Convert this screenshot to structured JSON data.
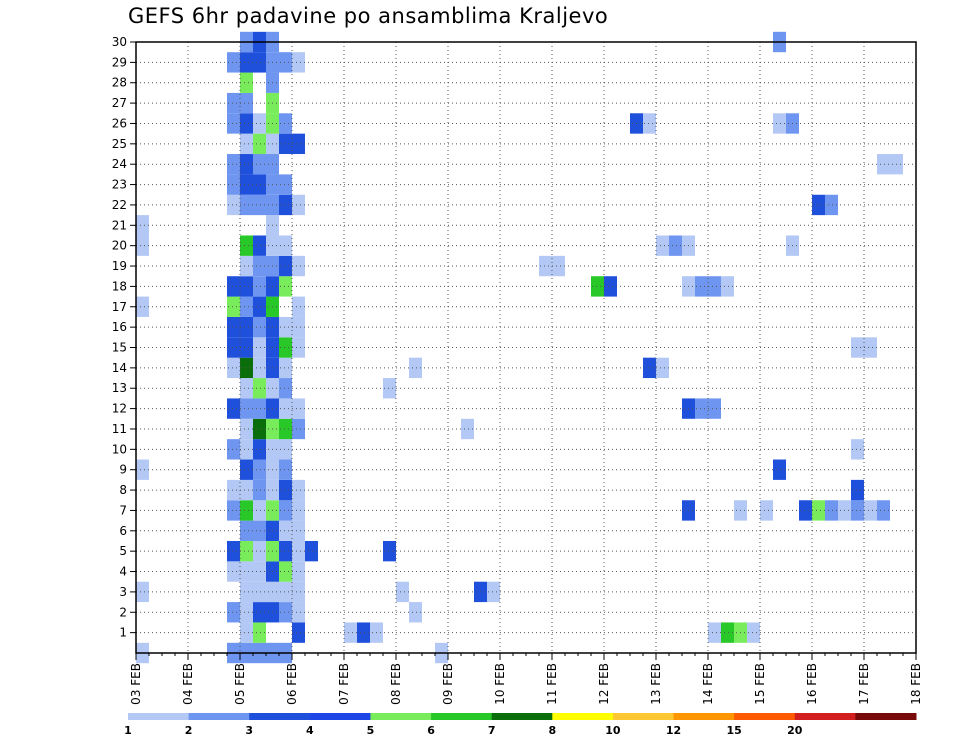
{
  "chart_data": {
    "type": "heatmap",
    "title": "GEFS 6hr padavine po ansamblima Kraljevo",
    "xlabel": "",
    "ylabel": "",
    "x_ticks": [
      "03 FEB",
      "04 FEB",
      "05 FEB",
      "06 FEB",
      "07 FEB",
      "08 FEB",
      "09 FEB",
      "10 FEB",
      "11 FEB",
      "12 FEB",
      "13 FEB",
      "14 FEB",
      "15 FEB",
      "16 FEB",
      "17 FEB",
      "18 FEB"
    ],
    "x_range": [
      "03 FEB 00Z",
      "18 FEB 00Z"
    ],
    "x_step_hours": 6,
    "y_range": [
      0,
      30
    ],
    "y_ticks": [
      1,
      2,
      3,
      4,
      5,
      6,
      7,
      8,
      9,
      10,
      11,
      12,
      13,
      14,
      15,
      16,
      17,
      18,
      19,
      20,
      21,
      22,
      23,
      24,
      25,
      26,
      27,
      28,
      29,
      30
    ],
    "grid": true,
    "colorbar": {
      "placement": "bottom",
      "levels": [
        "1",
        "2",
        "3",
        "4",
        "5",
        "6",
        "7",
        "8",
        "10",
        "12",
        "15",
        "20"
      ],
      "colors": [
        "#b4c8f5",
        "#6e96f0",
        "#1e50dc",
        "#1e46e6",
        "#78ec5a",
        "#28c828",
        "#0a6e0a",
        "#ffff00",
        "#ffc832",
        "#ff9600",
        "#ff5a00",
        "#d21e1e",
        "#780a0a"
      ]
    },
    "cells": [
      {
        "member": 0,
        "slots": [
          [
            1,
            1
          ],
          [
            8,
            2
          ],
          [
            9,
            2
          ],
          [
            10,
            2
          ],
          [
            11,
            2
          ],
          [
            12,
            2
          ],
          [
            24,
            1
          ]
        ]
      },
      {
        "member": 1,
        "slots": [
          [
            9,
            1
          ],
          [
            10,
            5
          ],
          [
            13,
            3
          ],
          [
            17,
            1
          ],
          [
            18,
            3
          ],
          [
            19,
            1
          ],
          [
            45,
            1
          ],
          [
            46,
            6
          ],
          [
            47,
            5
          ],
          [
            48,
            1
          ]
        ]
      },
      {
        "member": 2,
        "slots": [
          [
            8,
            2
          ],
          [
            9,
            1
          ],
          [
            10,
            3
          ],
          [
            11,
            3
          ],
          [
            12,
            2
          ],
          [
            13,
            1
          ],
          [
            22,
            1
          ]
        ]
      },
      {
        "member": 3,
        "slots": [
          [
            1,
            1
          ],
          [
            9,
            1
          ],
          [
            10,
            1
          ],
          [
            11,
            1
          ],
          [
            12,
            1
          ],
          [
            13,
            1
          ],
          [
            21,
            1
          ],
          [
            27,
            3
          ],
          [
            28,
            1
          ]
        ]
      },
      {
        "member": 4,
        "slots": [
          [
            8,
            1
          ],
          [
            9,
            1
          ],
          [
            10,
            1
          ],
          [
            11,
            3
          ],
          [
            12,
            5
          ],
          [
            13,
            1
          ]
        ]
      },
      {
        "member": 5,
        "slots": [
          [
            8,
            3
          ],
          [
            9,
            5
          ],
          [
            10,
            1
          ],
          [
            11,
            5
          ],
          [
            12,
            3
          ],
          [
            13,
            1
          ],
          [
            14,
            3
          ],
          [
            20,
            3
          ]
        ]
      },
      {
        "member": 6,
        "slots": [
          [
            9,
            2
          ],
          [
            10,
            2
          ],
          [
            11,
            3
          ],
          [
            12,
            1
          ],
          [
            13,
            1
          ]
        ]
      },
      {
        "member": 7,
        "slots": [
          [
            8,
            2
          ],
          [
            9,
            6
          ],
          [
            10,
            1
          ],
          [
            11,
            5
          ],
          [
            12,
            2
          ],
          [
            13,
            1
          ],
          [
            13,
            1
          ],
          [
            43,
            3
          ],
          [
            47,
            1
          ],
          [
            49,
            1
          ],
          [
            52,
            3
          ],
          [
            53,
            5
          ],
          [
            54,
            2
          ],
          [
            55,
            1
          ],
          [
            56,
            2
          ],
          [
            57,
            1
          ],
          [
            58,
            2
          ]
        ]
      },
      {
        "member": 8,
        "slots": [
          [
            8,
            1
          ],
          [
            9,
            1
          ],
          [
            10,
            2
          ],
          [
            11,
            1
          ],
          [
            12,
            3
          ],
          [
            13,
            1
          ],
          [
            56,
            3
          ]
        ]
      },
      {
        "member": 9,
        "slots": [
          [
            1,
            1
          ],
          [
            9,
            3
          ],
          [
            10,
            2
          ],
          [
            11,
            1
          ],
          [
            12,
            2
          ],
          [
            50,
            3
          ]
        ]
      },
      {
        "member": 10,
        "slots": [
          [
            8,
            2
          ],
          [
            9,
            1
          ],
          [
            10,
            3
          ],
          [
            11,
            1
          ],
          [
            12,
            1
          ],
          [
            56,
            1
          ]
        ]
      },
      {
        "member": 11,
        "slots": [
          [
            9,
            1
          ],
          [
            10,
            7
          ],
          [
            11,
            5
          ],
          [
            12,
            6
          ],
          [
            13,
            2
          ],
          [
            26,
            1
          ]
        ]
      },
      {
        "member": 12,
        "slots": [
          [
            8,
            3
          ],
          [
            9,
            2
          ],
          [
            10,
            2
          ],
          [
            11,
            3
          ],
          [
            12,
            1
          ],
          [
            13,
            1
          ],
          [
            43,
            3
          ],
          [
            44,
            2
          ],
          [
            45,
            2
          ]
        ]
      },
      {
        "member": 13,
        "slots": [
          [
            9,
            1
          ],
          [
            10,
            5
          ],
          [
            11,
            1
          ],
          [
            12,
            2
          ],
          [
            20,
            1
          ]
        ]
      },
      {
        "member": 14,
        "slots": [
          [
            8,
            1
          ],
          [
            9,
            7
          ],
          [
            10,
            1
          ],
          [
            11,
            3
          ],
          [
            12,
            1
          ],
          [
            22,
            1
          ],
          [
            40,
            3
          ],
          [
            41,
            1
          ]
        ]
      },
      {
        "member": 15,
        "slots": [
          [
            8,
            3
          ],
          [
            9,
            3
          ],
          [
            10,
            1
          ],
          [
            11,
            3
          ],
          [
            12,
            6
          ],
          [
            13,
            1
          ],
          [
            56,
            1
          ],
          [
            57,
            1
          ]
        ]
      },
      {
        "member": 16,
        "slots": [
          [
            8,
            3
          ],
          [
            9,
            3
          ],
          [
            10,
            2
          ],
          [
            11,
            3
          ],
          [
            12,
            1
          ],
          [
            13,
            1
          ]
        ]
      },
      {
        "member": 17,
        "slots": [
          [
            1,
            1
          ],
          [
            8,
            5
          ],
          [
            9,
            2
          ],
          [
            10,
            3
          ],
          [
            11,
            6
          ],
          [
            13,
            1
          ]
        ]
      },
      {
        "member": 18,
        "slots": [
          [
            8,
            3
          ],
          [
            9,
            3
          ],
          [
            10,
            2
          ],
          [
            11,
            3
          ],
          [
            12,
            5
          ],
          [
            36,
            6
          ],
          [
            37,
            3
          ],
          [
            43,
            1
          ],
          [
            44,
            2
          ],
          [
            45,
            2
          ],
          [
            46,
            1
          ]
        ]
      },
      {
        "member": 19,
        "slots": [
          [
            9,
            1
          ],
          [
            10,
            2
          ],
          [
            11,
            2
          ],
          [
            12,
            3
          ],
          [
            13,
            1
          ],
          [
            32,
            1
          ],
          [
            33,
            1
          ]
        ]
      },
      {
        "member": 20,
        "slots": [
          [
            1,
            1
          ],
          [
            9,
            6
          ],
          [
            10,
            3
          ],
          [
            11,
            1
          ],
          [
            12,
            1
          ],
          [
            41,
            1
          ],
          [
            42,
            2
          ],
          [
            43,
            1
          ],
          [
            51,
            1
          ]
        ]
      },
      {
        "member": 21,
        "slots": [
          [
            1,
            1
          ],
          [
            11,
            1
          ]
        ]
      },
      {
        "member": 22,
        "slots": [
          [
            8,
            1
          ],
          [
            9,
            2
          ],
          [
            10,
            2
          ],
          [
            11,
            2
          ],
          [
            12,
            3
          ],
          [
            13,
            1
          ],
          [
            53,
            3
          ],
          [
            54,
            2
          ]
        ]
      },
      {
        "member": 23,
        "slots": [
          [
            8,
            2
          ],
          [
            9,
            3
          ],
          [
            10,
            3
          ],
          [
            11,
            2
          ],
          [
            12,
            2
          ]
        ]
      },
      {
        "member": 24,
        "slots": [
          [
            8,
            2
          ],
          [
            9,
            3
          ],
          [
            10,
            2
          ],
          [
            11,
            2
          ],
          [
            58,
            1
          ],
          [
            59,
            1
          ]
        ]
      },
      {
        "member": 25,
        "slots": [
          [
            9,
            1
          ],
          [
            10,
            5
          ],
          [
            11,
            1
          ],
          [
            12,
            3
          ],
          [
            13,
            3
          ]
        ]
      },
      {
        "member": 26,
        "slots": [
          [
            8,
            2
          ],
          [
            9,
            3
          ],
          [
            10,
            1
          ],
          [
            11,
            5
          ],
          [
            12,
            2
          ],
          [
            39,
            3
          ],
          [
            40,
            1
          ],
          [
            50,
            1
          ],
          [
            51,
            2
          ]
        ]
      },
      {
        "member": 27,
        "slots": [
          [
            8,
            2
          ],
          [
            9,
            2
          ],
          [
            11,
            5
          ]
        ]
      },
      {
        "member": 28,
        "slots": [
          [
            9,
            5
          ],
          [
            11,
            2
          ]
        ]
      },
      {
        "member": 29,
        "slots": [
          [
            8,
            2
          ],
          [
            9,
            3
          ],
          [
            10,
            3
          ],
          [
            11,
            2
          ],
          [
            12,
            2
          ],
          [
            13,
            1
          ]
        ]
      },
      {
        "member": 30,
        "slots": [
          [
            9,
            2
          ],
          [
            10,
            3
          ],
          [
            11,
            2
          ],
          [
            50,
            2
          ]
        ]
      }
    ]
  }
}
